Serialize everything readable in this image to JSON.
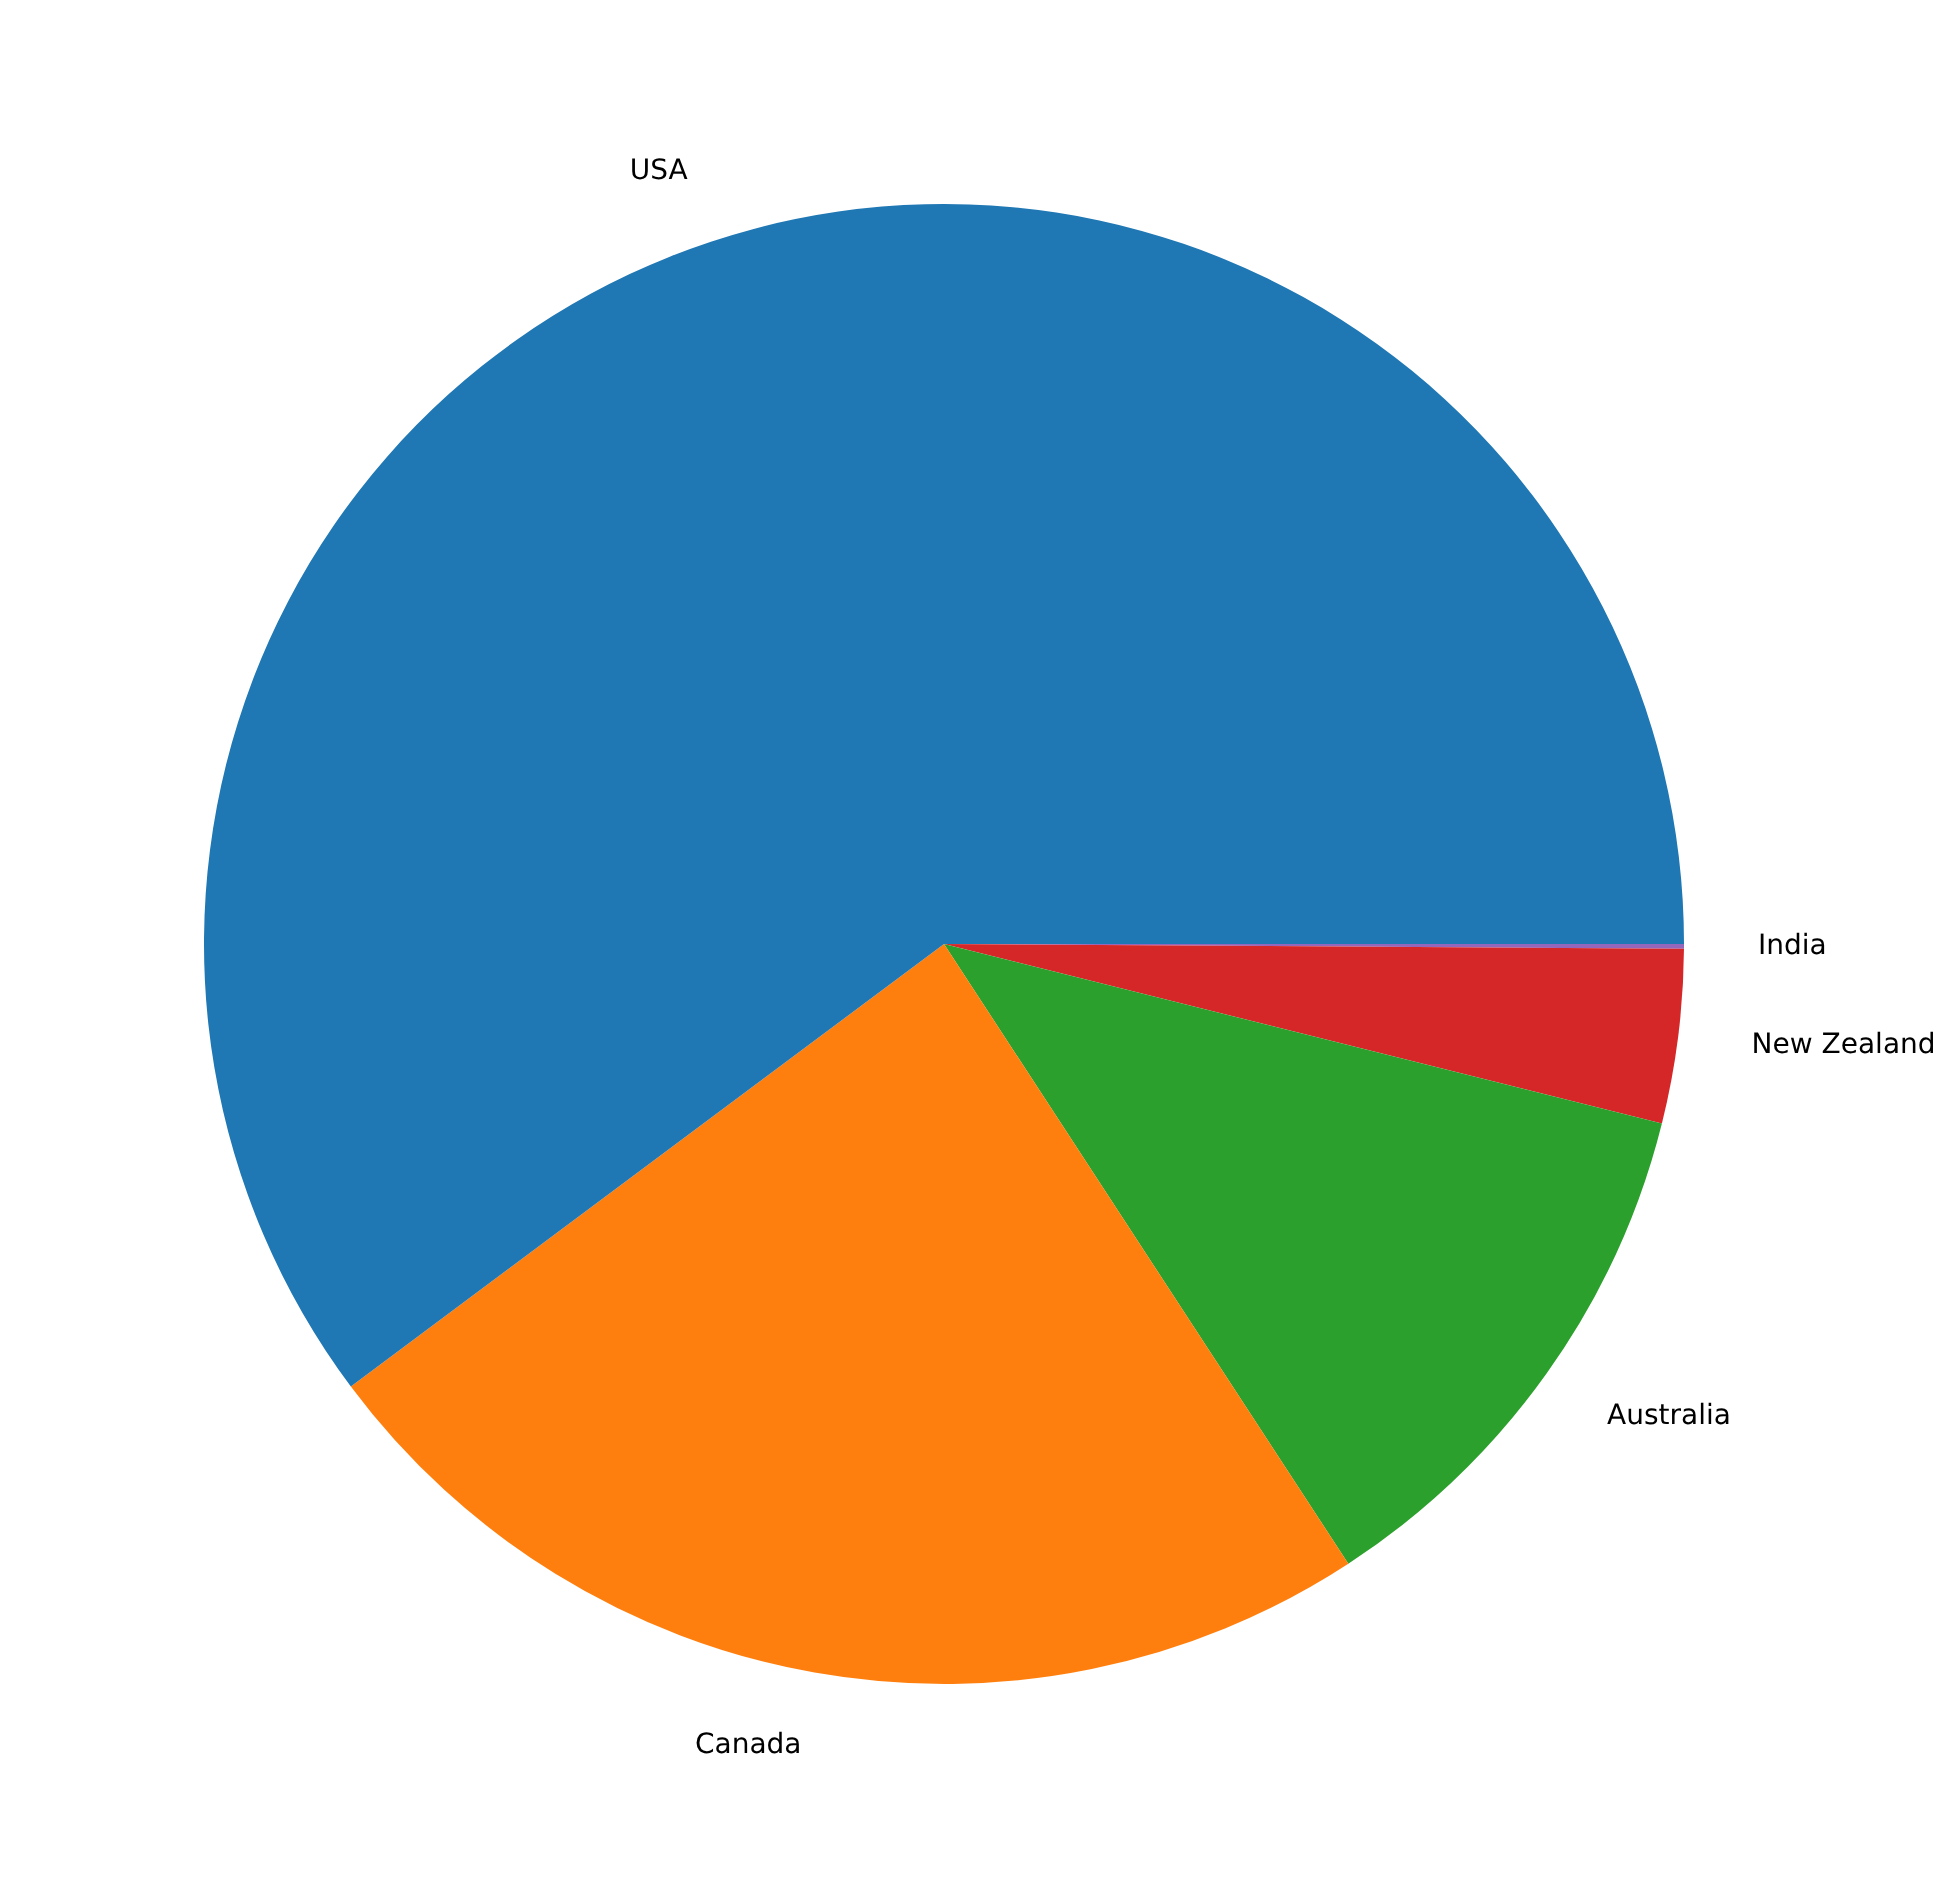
{
  "chart_data": {
    "type": "pie",
    "categories": [
      "USA",
      "Canada",
      "Australia",
      "New Zealand",
      "India"
    ],
    "values": [
      60.2,
      24.0,
      11.9,
      3.8,
      0.1
    ],
    "colors": [
      "#1f77b4",
      "#ff7f0e",
      "#2ca02c",
      "#d62728",
      "#9467bd"
    ],
    "legend": false
  }
}
